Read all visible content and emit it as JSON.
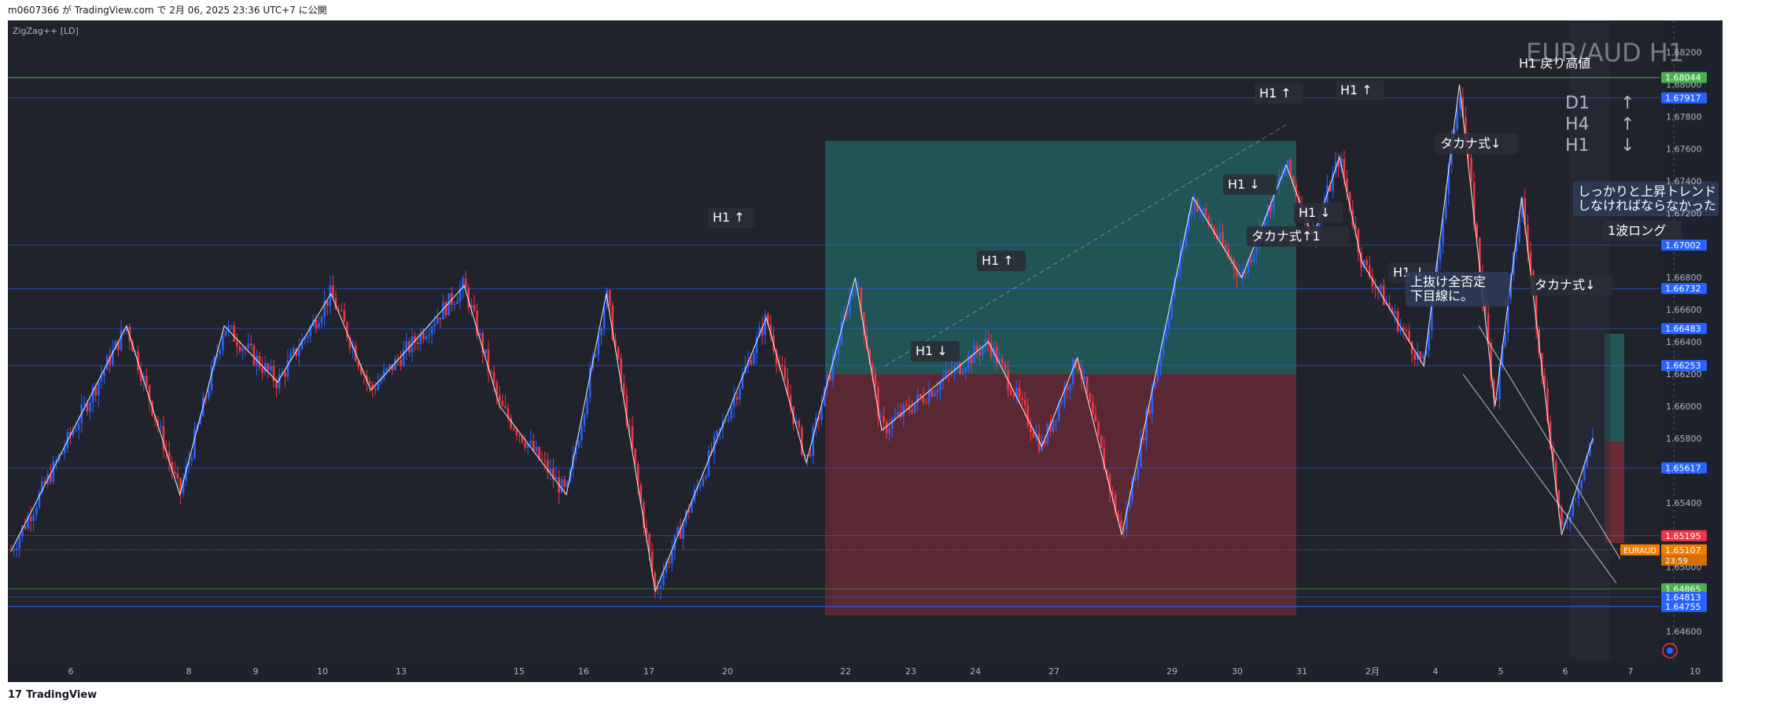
{
  "header": {
    "publish_line": "m0607366 が TradingView.com で 2月 06, 2025 23:36 UTC+7 に公開"
  },
  "footer": {
    "brand": "TradingView"
  },
  "indicator_label": "ZigZag++ [LD]",
  "watermark": "EUR/AUD H1",
  "colors": {
    "background": "#20232b",
    "bull_candle": "#2962ff",
    "bear_candle": "#f23645",
    "zigzag": "#ffffff",
    "long_profit_zone": "#26a69a",
    "long_loss_zone": "#f23645"
  },
  "chart_data": {
    "type": "candlestick",
    "symbol": "EURAUD",
    "timeframe": "H1",
    "ylim": [
      1.645,
      1.6835
    ],
    "y_ticks": [
      1.646,
      1.648,
      1.65,
      1.652,
      1.654,
      1.656,
      1.658,
      1.66,
      1.662,
      1.664,
      1.666,
      1.668,
      1.67,
      1.672,
      1.674,
      1.676,
      1.678,
      1.68,
      1.682
    ],
    "x_ticks": [
      "6",
      "8",
      "9",
      "10",
      "13",
      "15",
      "16",
      "17",
      "20",
      "22",
      "23",
      "24",
      "27",
      "29",
      "30",
      "31",
      "2月",
      "4",
      "5",
      "6",
      "7",
      "10"
    ],
    "price_tags": [
      {
        "label": "1.68044",
        "value": 1.68044,
        "color": "#4caf50"
      },
      {
        "label": "1.67917",
        "value": 1.67917,
        "color": "#2962ff"
      },
      {
        "label": "1.67002",
        "value": 1.67002,
        "color": "#2962ff"
      },
      {
        "label": "1.66732",
        "value": 1.66732,
        "color": "#2962ff"
      },
      {
        "label": "1.66483",
        "value": 1.66483,
        "color": "#2962ff"
      },
      {
        "label": "1.66253",
        "value": 1.66253,
        "color": "#2962ff"
      },
      {
        "label": "1.65617",
        "value": 1.65617,
        "color": "#2962ff"
      },
      {
        "label": "1.65195",
        "value": 1.65195,
        "color": "#f23645"
      },
      {
        "label": "1.65107",
        "value": 1.65107,
        "color": "#f57c00",
        "symbol": "EURAUD",
        "countdown": "23:59"
      },
      {
        "label": "1.64865",
        "value": 1.64865,
        "color": "#4caf50"
      },
      {
        "label": "1.64813",
        "value": 1.64813,
        "color": "#2962ff"
      },
      {
        "label": "1.64755",
        "value": 1.64755,
        "color": "#2962ff"
      }
    ],
    "zigzag": [
      [
        0,
        1.651
      ],
      [
        2.6,
        1.665
      ],
      [
        3.8,
        1.6545
      ],
      [
        4.8,
        1.665
      ],
      [
        6.0,
        1.6615
      ],
      [
        7.2,
        1.667
      ],
      [
        8.1,
        1.661
      ],
      [
        10.2,
        1.6675
      ],
      [
        11.0,
        1.66
      ],
      [
        12.5,
        1.6545
      ],
      [
        13.4,
        1.667
      ],
      [
        14.5,
        1.6485
      ],
      [
        17.0,
        1.6655
      ],
      [
        17.9,
        1.6565
      ],
      [
        19.0,
        1.668
      ],
      [
        19.6,
        1.6585
      ],
      [
        22.0,
        1.664
      ],
      [
        23.2,
        1.6575
      ],
      [
        24.0,
        1.663
      ],
      [
        25.0,
        1.652
      ],
      [
        26.6,
        1.673
      ],
      [
        27.7,
        1.668
      ],
      [
        28.7,
        1.675
      ],
      [
        29.3,
        1.6705
      ],
      [
        29.9,
        1.6755
      ],
      [
        30.4,
        1.669
      ],
      [
        31.8,
        1.6625
      ],
      [
        32.6,
        1.68
      ],
      [
        33.4,
        1.66
      ],
      [
        34.0,
        1.673
      ],
      [
        34.9,
        1.652
      ],
      [
        35.6,
        1.658
      ]
    ],
    "zones": [
      {
        "type": "long_profit",
        "price_top": 1.6765,
        "price_bottom": 1.662
      },
      {
        "type": "long_loss",
        "price_top": 1.662,
        "price_bottom": 1.647
      }
    ],
    "annotations": [
      {
        "text": "H1 ↑"
      },
      {
        "text": "H1 ↑"
      },
      {
        "text": "H1 ↑"
      },
      {
        "text": "H1 ↑"
      },
      {
        "text": "H1 ↓"
      },
      {
        "text": "H1 ↓"
      },
      {
        "text": "H1 ↓"
      },
      {
        "text": "H1 ↓"
      },
      {
        "text": "タカナ式↑1"
      },
      {
        "text": "タカナ式↓"
      },
      {
        "text": "タカナ式↓"
      },
      {
        "text": "上抜け全否定\n下目線に。"
      },
      {
        "text": "しっかりと上昇トレンド\nしなければならなかった"
      },
      {
        "text": "1波ロング"
      },
      {
        "text": "H1 戻り高値"
      }
    ],
    "mtf_trend": [
      {
        "timeframe": "D1",
        "direction": "↑"
      },
      {
        "timeframe": "H4",
        "direction": "↑"
      },
      {
        "timeframe": "H1",
        "direction": "↓"
      }
    ]
  }
}
